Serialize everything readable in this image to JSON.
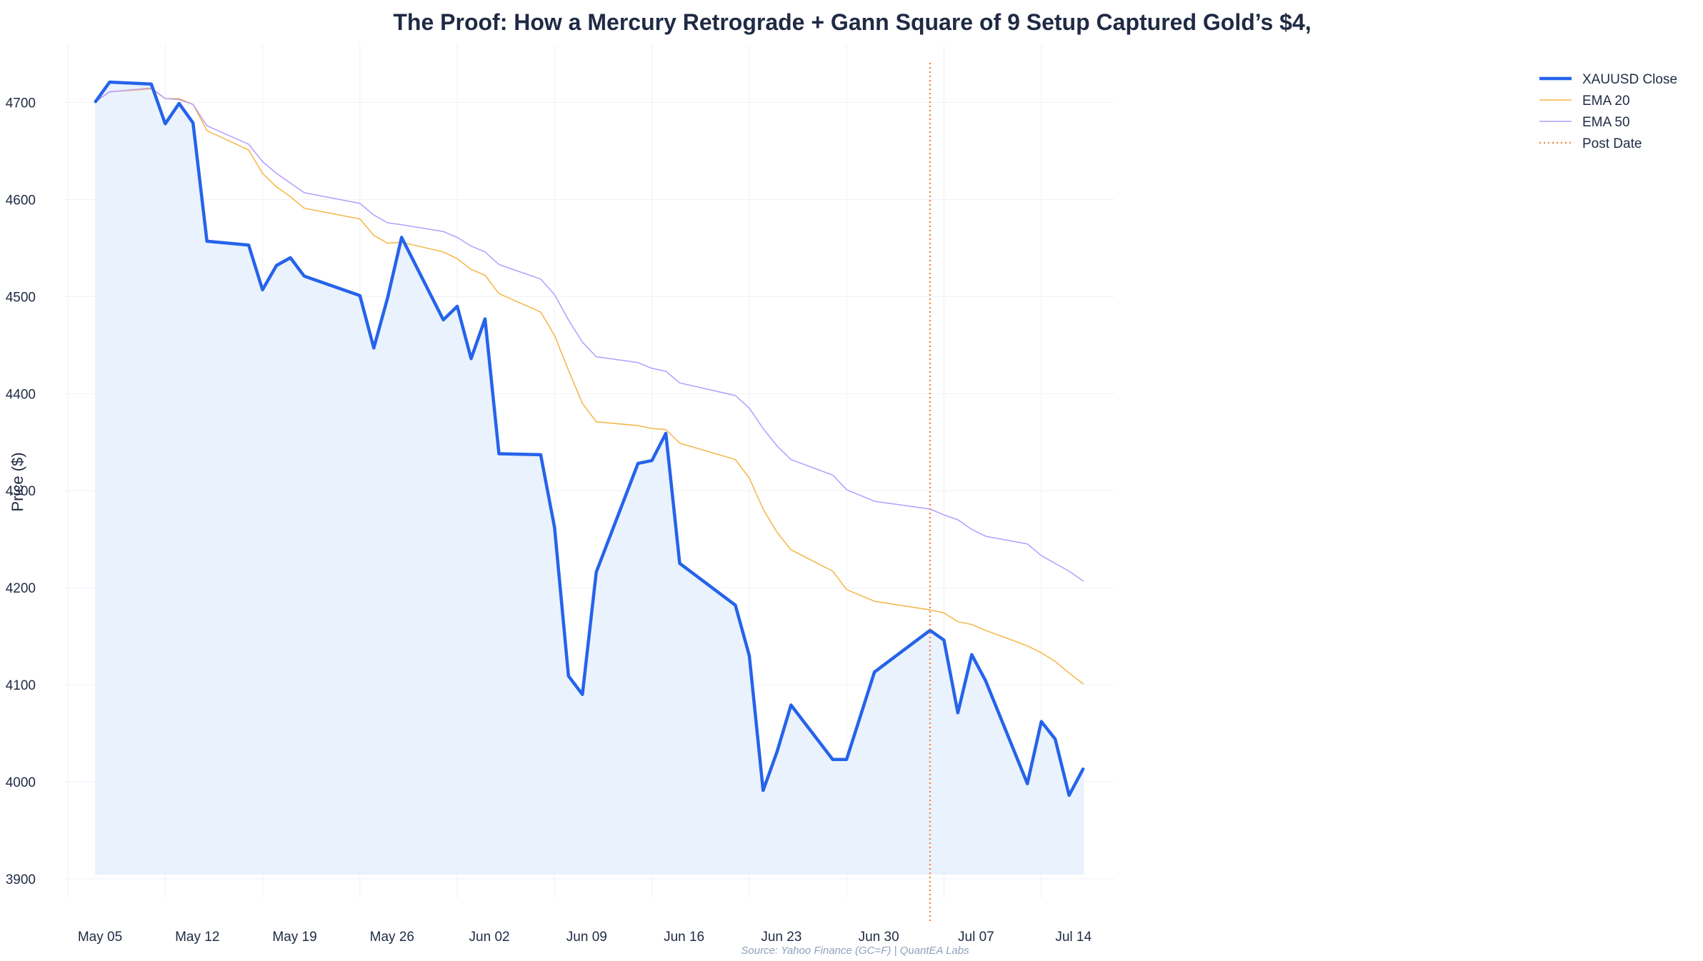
{
  "chart_data": {
    "type": "line",
    "title": "The Proof: How a Mercury Retrograde + Gann Square of 9 Setup Captured Gold’s $4,",
    "ylabel": "Price ($)",
    "xlabel": "",
    "source": "Source: Yahoo Finance (GC=F) | QuantEA Labs",
    "x_axis_type": "date",
    "xlim": [
      "2025-05-05",
      "2025-07-19"
    ],
    "ylim": [
      3880,
      4760
    ],
    "yticks": [
      3900,
      4000,
      4100,
      4200,
      4300,
      4400,
      4500,
      4600,
      4700
    ],
    "xticks": [
      {
        "date": "2025-05-05",
        "label": "May 05"
      },
      {
        "date": "2025-05-12",
        "label": "May 12"
      },
      {
        "date": "2025-05-19",
        "label": "May 19"
      },
      {
        "date": "2025-05-26",
        "label": "May 26"
      },
      {
        "date": "2025-06-02",
        "label": "Jun 02"
      },
      {
        "date": "2025-06-09",
        "label": "Jun 09"
      },
      {
        "date": "2025-06-16",
        "label": "Jun 16"
      },
      {
        "date": "2025-06-23",
        "label": "Jun 23"
      },
      {
        "date": "2025-06-30",
        "label": "Jun 30"
      },
      {
        "date": "2025-07-07",
        "label": "Jul 07"
      },
      {
        "date": "2025-07-14",
        "label": "Jul 14"
      }
    ],
    "grid": true,
    "legend_position": "top-right",
    "fill_baseline": 3905,
    "x": [
      "2025-05-07",
      "2025-05-08",
      "2025-05-11",
      "2025-05-12",
      "2025-05-13",
      "2025-05-14",
      "2025-05-15",
      "2025-05-18",
      "2025-05-19",
      "2025-05-20",
      "2025-05-21",
      "2025-05-22",
      "2025-05-26",
      "2025-05-27",
      "2025-05-28",
      "2025-05-29",
      "2025-06-01",
      "2025-06-02",
      "2025-06-03",
      "2025-06-04",
      "2025-06-05",
      "2025-06-08",
      "2025-06-09",
      "2025-06-10",
      "2025-06-11",
      "2025-06-12",
      "2025-06-15",
      "2025-06-16",
      "2025-06-17",
      "2025-06-18",
      "2025-06-22",
      "2025-06-23",
      "2025-06-24",
      "2025-06-25",
      "2025-06-26",
      "2025-06-29",
      "2025-06-30",
      "2025-07-02",
      "2025-07-06",
      "2025-07-07",
      "2025-07-08",
      "2025-07-09",
      "2025-07-10",
      "2025-07-13",
      "2025-07-14",
      "2025-07-15",
      "2025-07-16",
      "2025-07-17"
    ],
    "series": [
      {
        "name": "XAUUSD Close",
        "color": "#2563eb",
        "width": 4.5,
        "values": [
          4701,
          4721,
          4719,
          4678,
          4699,
          4679,
          4557,
          4553,
          4507,
          4532,
          4540,
          4521,
          4501,
          4447,
          4499,
          4561,
          4476,
          4490,
          4436,
          4477,
          4338,
          4337,
          4262,
          4109,
          4090,
          4216,
          4328,
          4331,
          4359,
          4225,
          4182,
          4130,
          3991,
          4031,
          4079,
          4023,
          4023,
          4113,
          4156,
          4146,
          4071,
          4131,
          4104,
          3998,
          4062,
          4044,
          3986,
          4013
        ]
      },
      {
        "name": "EMA 20",
        "color": "#f5b544",
        "width": 1.5,
        "values": [
          4701,
          4711,
          4714,
          4704,
          4704,
          4698,
          4671,
          4651,
          4627,
          4613,
          4603,
          4591,
          4580,
          4563,
          4555,
          4556,
          4546,
          4539,
          4528,
          4522,
          4503,
          4484,
          4460,
          4424,
          4390,
          4371,
          4367,
          4364,
          4363,
          4349,
          4332,
          4313,
          4281,
          4257,
          4239,
          4217,
          4198,
          4186,
          4177,
          4174,
          4165,
          4162,
          4156,
          4140,
          4133,
          4124,
          4112,
          4101
        ]
      },
      {
        "name": "EMA 50",
        "color": "#b39dff",
        "width": 1.5,
        "values": [
          4701,
          4711,
          4715,
          4704,
          4703,
          4698,
          4676,
          4657,
          4639,
          4627,
          4617,
          4607,
          4596,
          4584,
          4576,
          4574,
          4567,
          4561,
          4552,
          4546,
          4533,
          4518,
          4502,
          4476,
          4453,
          4438,
          4432,
          4426,
          4423,
          4411,
          4398,
          4385,
          4364,
          4346,
          4332,
          4316,
          4301,
          4289,
          4281,
          4275,
          4270,
          4260,
          4253,
          4245,
          4233,
          4225,
          4217,
          4207
        ]
      }
    ],
    "post_date": {
      "name": "Post Date",
      "date": "2025-07-06",
      "color": "#f08a4b"
    }
  },
  "style": {
    "fill_color": "#eaf2fd",
    "grid_color": "#eef1f6",
    "text_color": "#1f2a44"
  }
}
